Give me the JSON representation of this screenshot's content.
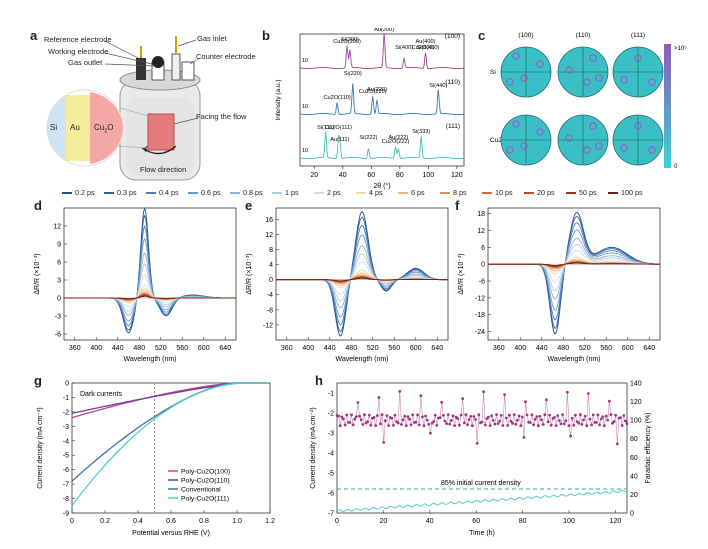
{
  "panels": {
    "a": {
      "letter": "a",
      "labels": {
        "reference": "Reference electrode",
        "working": "Working electrode",
        "gas_outlet": "Gas outlet",
        "gas_inlet": "Gas inlet",
        "counter": "Counter electrode",
        "facing_flow": "Facing the flow",
        "flow_direction": "Flow direction",
        "si": "Si",
        "au": "Au",
        "cu2o": "Cu",
        "cu2o_sub": "2",
        "cu2o_end": "O"
      },
      "colors": {
        "si": "#cfe3f4",
        "au": "#f5ec9a",
        "cu2o": "#f6a7a5"
      }
    },
    "b": {
      "letter": "b",
      "ylabel": "Intensity (a.u.)",
      "xlabel": "2θ (°)",
      "xticks": [
        "20",
        "40",
        "60",
        "80",
        "100",
        "120"
      ],
      "tags": [
        "(100)",
        "(110)",
        "(111)"
      ],
      "ytick": [
        "10",
        "10",
        "10"
      ],
      "peaks_top": [
        "Cu2O(200)",
        "Si(200)",
        "Au(200)",
        "Si(400)",
        "Cu2O(400)",
        "Au(400)",
        "Si(600)"
      ],
      "peaks_mid": [
        "Cu2O(110)",
        "Si(220)",
        "Cu2O(220)",
        "Au(220)",
        "Si(440)"
      ],
      "peaks_bot": [
        "Si(111)",
        "Cu2O(111)",
        "Au(111)",
        "Si(222)",
        "Cu2O(222)",
        "Au(222)",
        "Si(333)"
      ]
    },
    "c": {
      "letter": "c",
      "cols": [
        "(100)",
        "(110)",
        "(111)"
      ],
      "rows": [
        "Si",
        "Cu2O"
      ],
      "colorbar_max": ">10⁵",
      "colorbar_min": "0",
      "colors": {
        "fill": "#3bbfc7",
        "dot": "#9c58c2",
        "bar_top": "#8d5bb3",
        "bar_bottom": "#3fd0d6"
      }
    },
    "d": {
      "letter": "d"
    },
    "e": {
      "letter": "e"
    },
    "f": {
      "letter": "f"
    },
    "ta_common": {
      "ylabel": "ΔR/R (×10⁻³)",
      "xlabel": "Wavelength (nm)",
      "xticks": [
        "360",
        "400",
        "440",
        "480",
        "520",
        "560",
        "600",
        "640"
      ],
      "yticks_d": [
        "12",
        "9",
        "6",
        "3",
        "0",
        "-3",
        "-6"
      ],
      "yticks_e": [
        "16",
        "12",
        "8",
        "4",
        "0",
        "-4",
        "-8",
        "-12"
      ],
      "yticks_f": [
        "18",
        "12",
        "6",
        "0",
        "-6",
        "-12",
        "-18",
        "-24"
      ]
    },
    "legend": [
      {
        "label": "0.2 ps",
        "color": "#1f4e8c"
      },
      {
        "label": "0.3 ps",
        "color": "#2f62a5"
      },
      {
        "label": "0.4 ps",
        "color": "#4a7ab8"
      },
      {
        "label": "0.6 ps",
        "color": "#6b95c6"
      },
      {
        "label": "0.8 ps",
        "color": "#8fb1d4"
      },
      {
        "label": "1 ps",
        "color": "#b2cbe1"
      },
      {
        "label": "2 ps",
        "color": "#cfdde9"
      },
      {
        "label": "4 ps",
        "color": "#f2d6a6"
      },
      {
        "label": "6 ps",
        "color": "#f0b680"
      },
      {
        "label": "8 ps",
        "color": "#e8905a"
      },
      {
        "label": "10 ps",
        "color": "#d96a3c"
      },
      {
        "label": "20 ps",
        "color": "#c04a28"
      },
      {
        "label": "50 ps",
        "color": "#9c3220"
      },
      {
        "label": "100 ps",
        "color": "#6e2014"
      }
    ],
    "g": {
      "letter": "g",
      "ylabel": "Current density (mA cm⁻²)",
      "xlabel": "Potential versus RHE (V)",
      "dark": "Dark currents",
      "xticks": [
        "0",
        "0.2",
        "0.4",
        "0.6",
        "0.8",
        "1.0",
        "1.2"
      ],
      "yticks": [
        "0",
        "-1",
        "-2",
        "-3",
        "-4",
        "-5",
        "-6",
        "-7",
        "-8",
        "-9"
      ],
      "series": [
        {
          "name": "Poly-Cu2O(100)",
          "color": "#c0468f"
        },
        {
          "name": "Poly-Cu2O(110)",
          "color": "#6b3fa0"
        },
        {
          "name": "Conventional",
          "color": "#3a6fb0"
        },
        {
          "name": "Poly-Cu2O(111)",
          "color": "#4fd1c2"
        }
      ]
    },
    "h": {
      "letter": "h",
      "ylabel_left": "Current density (mA cm⁻²)",
      "ylabel_right": "Faradaic efficiency (%)",
      "xlabel": "Time (h)",
      "annotation": "85% initial current density",
      "xticks": [
        "0",
        "20",
        "40",
        "60",
        "80",
        "100",
        "120"
      ],
      "yticks_left": [
        "-1",
        "-2",
        "-3",
        "-4",
        "-5",
        "-6",
        "-7"
      ],
      "yticks_right": [
        "140",
        "120",
        "100",
        "80",
        "60",
        "40",
        "20",
        "0"
      ],
      "colors": {
        "fe": "#a4327f",
        "current": "#4fcfbf",
        "dash": "#3aa899"
      }
    }
  }
}
